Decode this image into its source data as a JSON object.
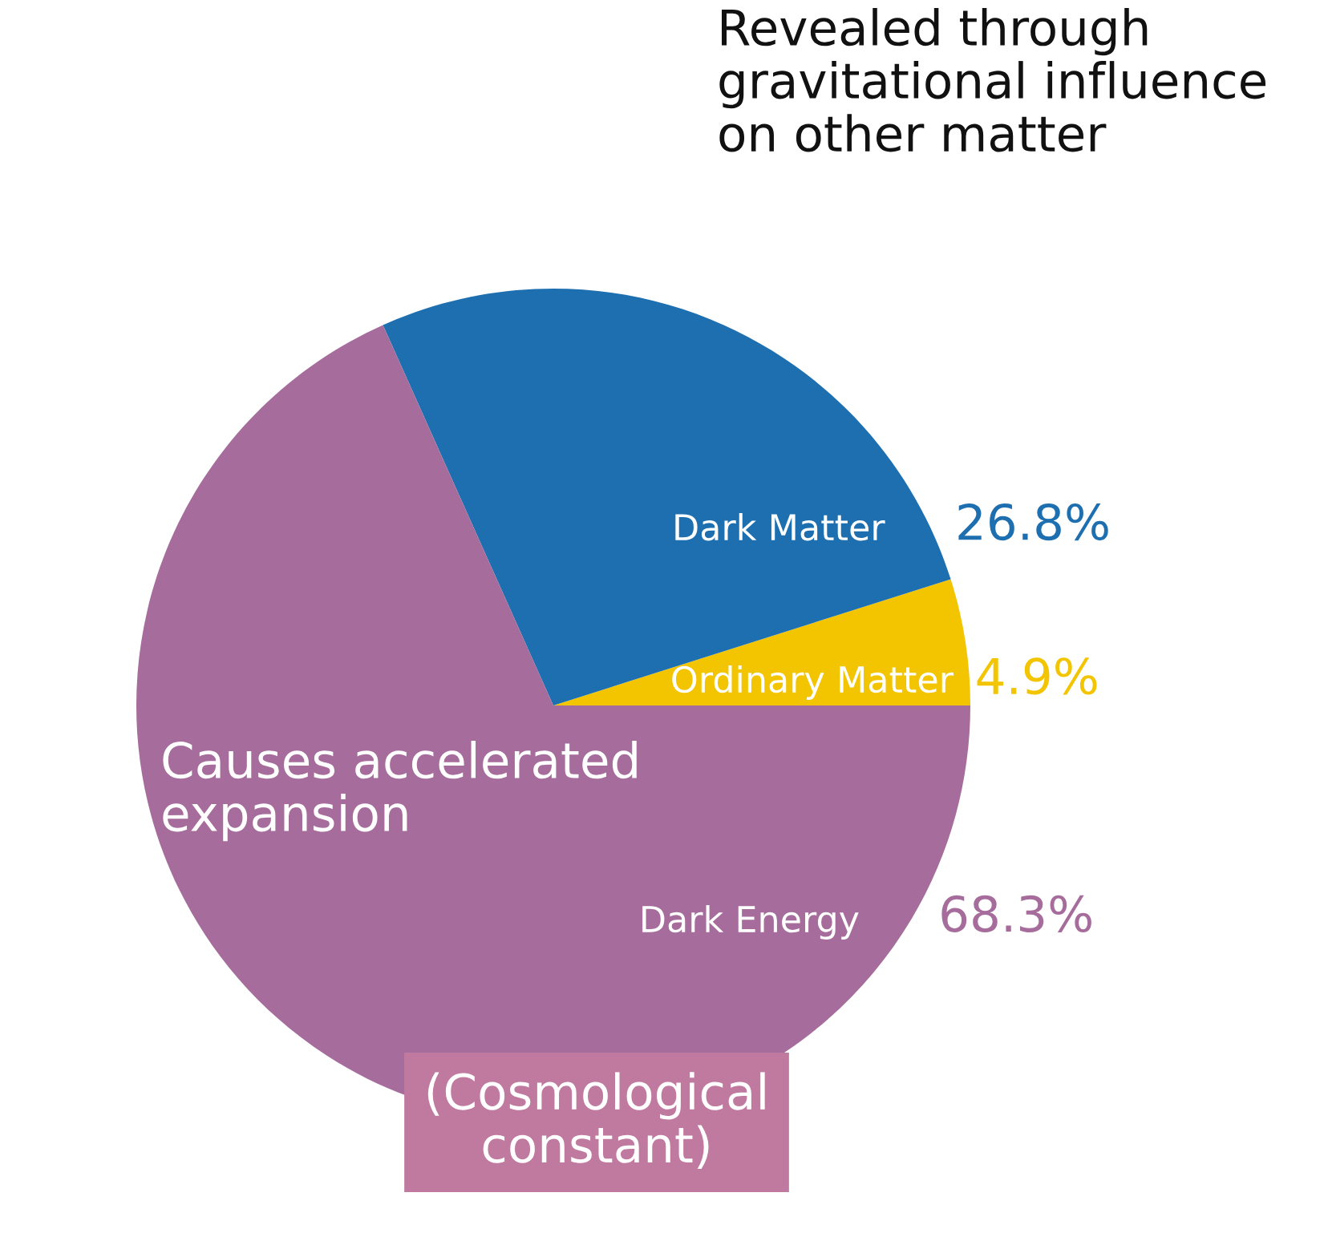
{
  "chart_data": {
    "type": "pie",
    "categories": [
      "Ordinary Matter",
      "Dark Matter",
      "Dark Energy"
    ],
    "values": [
      4.9,
      26.8,
      68.3
    ],
    "colors": [
      "#f2c500",
      "#1e6fb0",
      "#a66d9c"
    ],
    "value_labels": [
      "4.9%",
      "26.8%",
      "68.3%"
    ],
    "annotations": [
      "Revealed through\ngravitational influence\non other matter",
      "Causes accelerated\nexpansion",
      "(Cosmological\nconstant)"
    ],
    "legend": false
  }
}
